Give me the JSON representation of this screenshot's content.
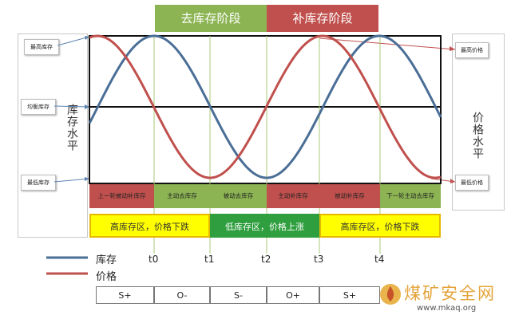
{
  "phases": {
    "destock": "去库存阶段",
    "restock": "补库存阶段"
  },
  "left_panel": {
    "axis_label": "库存水平",
    "max_box": "最高库存",
    "mid_box": "均衡库存",
    "min_box": "最低库存"
  },
  "right_panel": {
    "axis_label": "价格水平",
    "max_box": "最高价格",
    "min_box": "最低价格"
  },
  "stages": [
    {
      "label": "上一轮被动补库存",
      "color": "#c0504d"
    },
    {
      "label": "主动去库存",
      "color": "#8cb453"
    },
    {
      "label": "被动去库存",
      "color": "#8cb453"
    },
    {
      "label": "主动补库存",
      "color": "#c0504d"
    },
    {
      "label": "被动补库存",
      "color": "#c0504d"
    },
    {
      "label": "下一轮主动去库存",
      "color": "#8cb453"
    }
  ],
  "zones": [
    {
      "label": "高库存区，价格下跌",
      "style": "yellow"
    },
    {
      "label": "低库存区，价格上涨",
      "style": "green"
    },
    {
      "label": "高库存区，价格下跌",
      "style": "yellow"
    }
  ],
  "time_labels": [
    "t0",
    "t1",
    "t2",
    "t3",
    "t4"
  ],
  "legend": {
    "inventory": "库存",
    "price": "价格"
  },
  "inventory_color": "#4a6e96",
  "price_color": "#c0504d",
  "bottom_row": [
    "S+",
    "O-",
    "S-",
    "O+",
    "S+"
  ],
  "watermark": {
    "title": "煤矿安全网",
    "url": "www.mkaq.org"
  }
}
